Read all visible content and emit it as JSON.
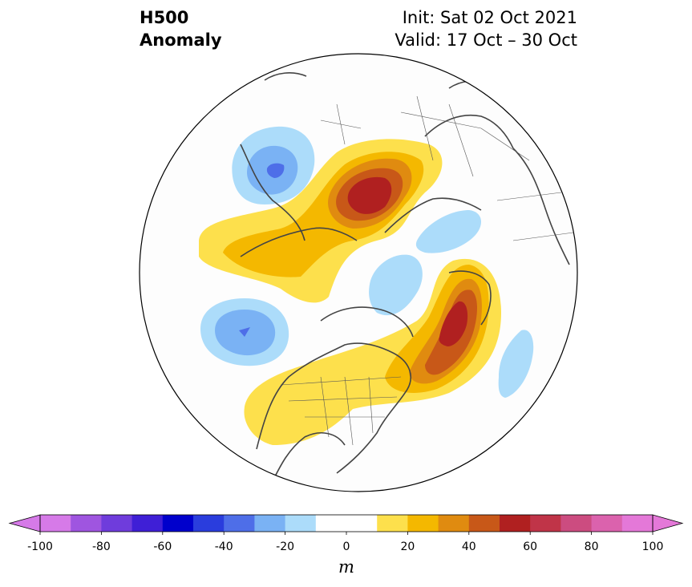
{
  "title": {
    "variable": "H500",
    "type": "Anomaly",
    "init": "Init: Sat 02 Oct 2021",
    "valid": "Valid: 17 Oct – 30 Oct"
  },
  "map": {
    "projection": "north-polar-stereographic",
    "region": "Northern Hemisphere",
    "boundary": "circle"
  },
  "colorbar": {
    "units": "m",
    "min": -100,
    "max": 100,
    "step": 10,
    "extend": "both",
    "tick_values": [
      -100,
      -80,
      -60,
      -40,
      -20,
      0,
      20,
      40,
      60,
      80,
      100
    ],
    "tick_labels": [
      "-100",
      "-80",
      "-60",
      "-40",
      "-20",
      "0",
      "20",
      "40",
      "60",
      "80",
      "100"
    ],
    "colors": [
      "#d67ae8",
      "#9f55e0",
      "#6f3cdc",
      "#3f1fd6",
      "#0000cc",
      "#2a3ddd",
      "#4e6ee8",
      "#7ab2f4",
      "#acdcfa",
      "#ffffff",
      "#ffffff",
      "#fde04c",
      "#f4b800",
      "#e08b10",
      "#c85818",
      "#b02020",
      "#c03448",
      "#cc4c80",
      "#db62ad",
      "#e478d8"
    ],
    "under_color": "#d67ae8",
    "over_color": "#e478d8"
  }
}
